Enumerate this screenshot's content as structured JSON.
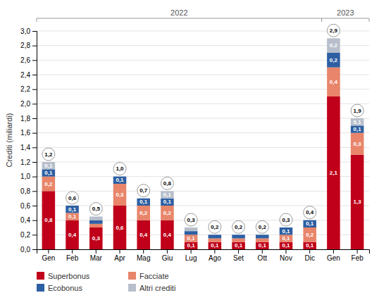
{
  "chart_data": {
    "type": "bar",
    "stacked": true,
    "data_labels": true,
    "grid": true,
    "legend": "bottom",
    "y_label": "Crediti (miliardi)",
    "categories": [
      "Gen",
      "Feb",
      "Mar",
      "Apr",
      "Mag",
      "Giu",
      "Lug",
      "Ago",
      "Set",
      "Ott",
      "Nov",
      "Dic",
      "Gen",
      "Feb"
    ],
    "series": [
      {
        "name": "Superbonus",
        "color": "#c0001a",
        "values": [
          0.8,
          0.4,
          0.3,
          0.6,
          0.4,
          0.4,
          0.1,
          0.1,
          0.1,
          0.1,
          0.1,
          0.1,
          2.1,
          1.3
        ],
        "value_labels": [
          "0,8",
          "0,4",
          "0,3",
          "0,6",
          "0,4",
          "0,4",
          "0,1",
          "0,1",
          "0,1",
          "0,1",
          "0,1",
          "0,1",
          "2,1",
          "1,3"
        ]
      },
      {
        "name": "Facciate",
        "color": "#e8856a",
        "values": [
          0.2,
          0.1,
          0.05,
          0.3,
          0.2,
          0.2,
          0.1,
          0.05,
          0.05,
          0.05,
          0.1,
          0.2,
          0.4,
          0.3
        ],
        "value_labels": [
          "0,2",
          "0,1",
          null,
          "0,3",
          "0,2",
          "0,2",
          "0,1",
          null,
          null,
          null,
          "0,1",
          "0,2",
          "0,4",
          "0,3"
        ]
      },
      {
        "name": "Ecobonus",
        "color": "#2e5fa3",
        "values": [
          0.1,
          0.1,
          0.05,
          0.1,
          0.1,
          0.1,
          0.05,
          0.05,
          0.05,
          0.05,
          0.1,
          0.1,
          0.2,
          0.1
        ],
        "value_labels": [
          "0,1",
          "0,1",
          null,
          "0,1",
          "0,1",
          "0,1",
          null,
          null,
          null,
          null,
          "0,1",
          "0,1",
          "0,2",
          "0,1"
        ]
      },
      {
        "name": "Altri crediti",
        "color": "#b8bfcc",
        "values": [
          0.1,
          0.0,
          0.05,
          0.0,
          0.0,
          0.1,
          0.05,
          0.0,
          0.0,
          0.0,
          0.0,
          0.0,
          0.2,
          0.1
        ],
        "value_labels": [
          "0,1",
          null,
          null,
          null,
          null,
          "0,1",
          null,
          null,
          null,
          null,
          null,
          null,
          "0,2",
          "0,1"
        ]
      }
    ],
    "totals": [
      1.2,
      0.6,
      0.5,
      1.0,
      0.7,
      0.8,
      0.3,
      0.2,
      0.2,
      0.2,
      0.3,
      0.4,
      2.9,
      1.9
    ],
    "total_labels": [
      "1,2",
      "0,6",
      "0,5",
      "1,0",
      "0,7",
      "0,8",
      "0,3",
      "0,2",
      "0,2",
      "0,2",
      "0,3",
      "0,4",
      "2,9",
      "1,9"
    ],
    "annotations": [
      {
        "text": "2022",
        "span": 12
      },
      {
        "text": "2023",
        "span": 2
      }
    ],
    "ylim": [
      0.0,
      3.0
    ],
    "yticks": [
      {
        "value": 0.0,
        "label": "0,0"
      },
      {
        "value": 0.2,
        "label": "0,2"
      },
      {
        "value": 0.4,
        "label": "0,4"
      },
      {
        "value": 0.6,
        "label": "0,6"
      },
      {
        "value": 0.8,
        "label": "0,8"
      },
      {
        "value": 1.0,
        "label": "1,0"
      },
      {
        "value": 1.2,
        "label": "1,2"
      },
      {
        "value": 1.4,
        "label": "1,4"
      },
      {
        "value": 1.6,
        "label": "1,6"
      },
      {
        "value": 1.8,
        "label": "1,8"
      },
      {
        "value": 2.0,
        "label": "2,0"
      },
      {
        "value": 2.2,
        "label": "2,2"
      },
      {
        "value": 2.4,
        "label": "2,4"
      },
      {
        "value": 2.6,
        "label": "2,6"
      },
      {
        "value": 2.8,
        "label": "2,8"
      },
      {
        "value": 3.0,
        "label": "3,0"
      }
    ]
  }
}
